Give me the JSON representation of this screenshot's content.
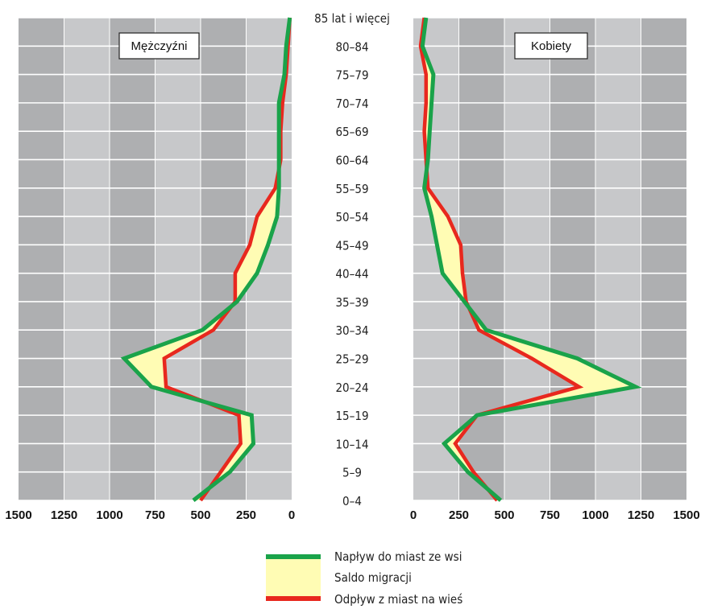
{
  "chart_data": {
    "type": "line",
    "age_groups": [
      "0–4",
      "5–9",
      "10–14",
      "15–19",
      "20–24",
      "25–29",
      "30–34",
      "35–39",
      "40–44",
      "45–49",
      "50–54",
      "55–59",
      "60–64",
      "65–69",
      "70–74",
      "75–79",
      "80–84",
      "85 lat i więcej"
    ],
    "x_ticks_left": [
      "1500",
      "1250",
      "1000",
      "750",
      "500",
      "250",
      "0"
    ],
    "x_ticks_right": [
      "0",
      "250",
      "500",
      "750",
      "1000",
      "1250",
      "1500"
    ],
    "xlim": [
      0,
      1500
    ],
    "panels": [
      {
        "title": "Mężczyźni",
        "side": "left",
        "series": [
          {
            "name": "Napływ do miast ze wsi",
            "color": "#1aa34a",
            "values": [
              540,
              340,
              210,
              220,
              770,
              920,
              490,
              300,
              190,
              130,
              80,
              70,
              70,
              70,
              70,
              40,
              30,
              10
            ]
          },
          {
            "name": "Odpływ z miast na wieś",
            "color": "#e8281e",
            "values": [
              500,
              390,
              280,
              290,
              690,
              700,
              430,
              310,
              310,
              230,
              190,
              90,
              60,
              60,
              50,
              30,
              20,
              10
            ]
          }
        ]
      },
      {
        "title": "Kobiety",
        "side": "right",
        "series": [
          {
            "name": "Napływ do miast ze wsi",
            "color": "#1aa34a",
            "values": [
              480,
              300,
              170,
              350,
              1220,
              900,
              400,
              280,
              160,
              130,
              100,
              60,
              80,
              90,
              100,
              110,
              50,
              70
            ]
          },
          {
            "name": "Odpływ z miast na wieś",
            "color": "#e8281e",
            "values": [
              460,
              330,
              230,
              350,
              910,
              650,
              360,
              290,
              270,
              260,
              190,
              80,
              70,
              60,
              70,
              70,
              40,
              60
            ]
          }
        ]
      }
    ],
    "legend": {
      "placement": "bottom-center",
      "items": [
        {
          "label": "Napływ do miast ze wsi",
          "kind": "line",
          "color": "#1aa34a"
        },
        {
          "label": "Saldo migracji",
          "kind": "fill",
          "color": "#fffcb4"
        },
        {
          "label": "Odpływ z miast na wieś",
          "kind": "line",
          "color": "#e8281e"
        }
      ]
    },
    "colors": {
      "band_light": "#c7c8ca",
      "band_dark": "#aeafb1",
      "fill": "#fffcb4"
    }
  }
}
